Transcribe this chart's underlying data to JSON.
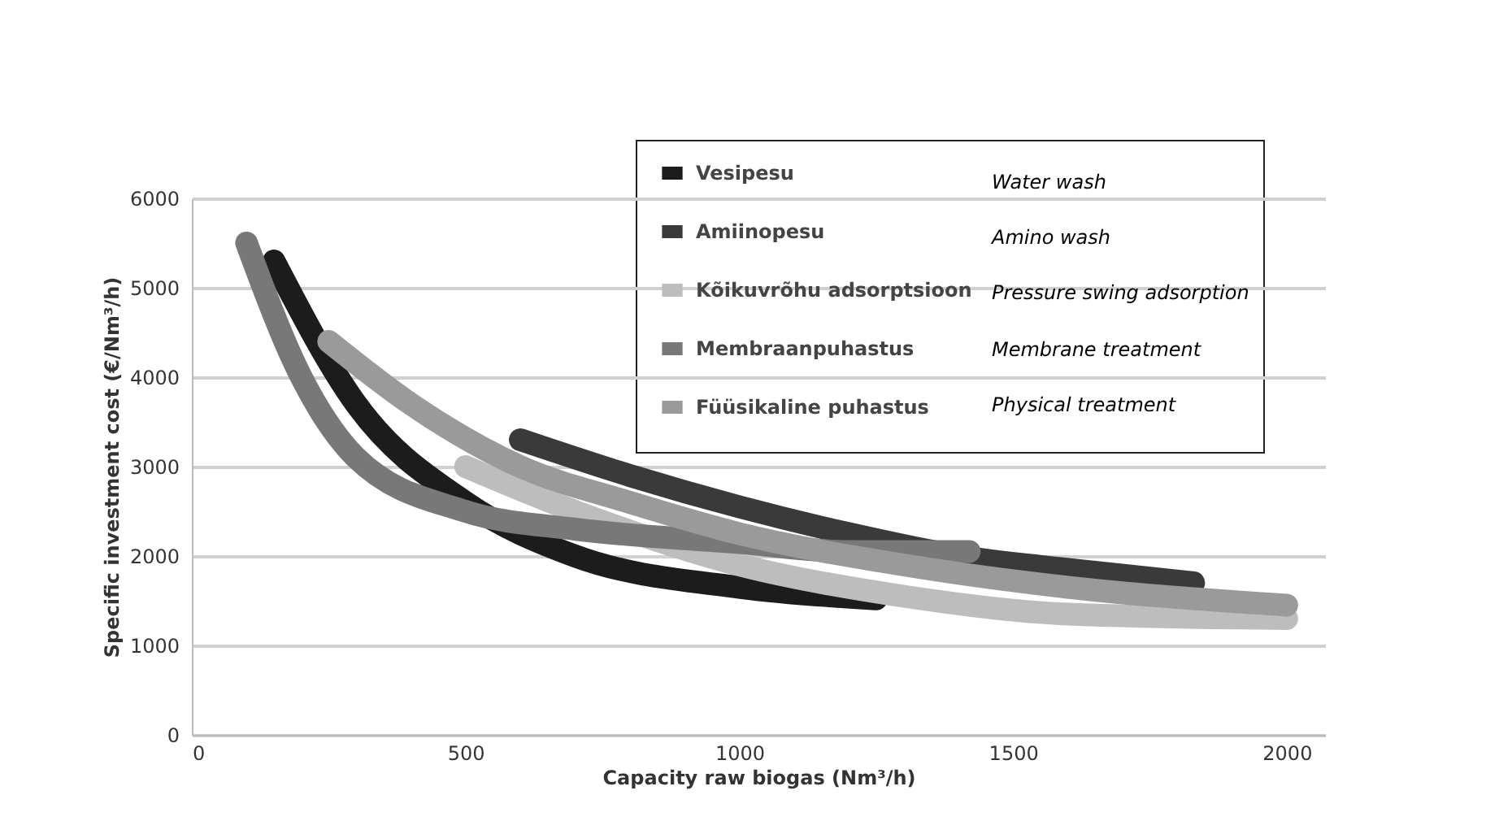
{
  "chart_data": {
    "type": "line",
    "xlabel": "Capacity raw biogas (Nm³/h)",
    "ylabel": "Specific investment cost (€/Nm³/h)",
    "xlim": [
      0,
      2070
    ],
    "xticks": [
      0,
      500,
      1000,
      1500,
      2000
    ],
    "ylim": [
      0,
      6000
    ],
    "yticks": [
      0,
      1000,
      2000,
      3000,
      4000,
      5000,
      6000
    ],
    "grid": "y",
    "legend": "top right",
    "marker": "none",
    "line_style": "solid",
    "annotations": [
      "Water wash",
      "Amino wash",
      "Pressure swing adsorption",
      "Membrane treatment",
      "Physical treatment"
    ],
    "series": [
      {
        "name": "Vesipesu",
        "color": "#1c1c1c",
        "x": [
          150,
          300,
          500,
          700,
          1000,
          1250
        ],
        "values": [
          5300,
          3700,
          2600,
          2000,
          1650,
          1520
        ]
      },
      {
        "name": "Amiinopesu",
        "color": "#3a3a3a",
        "x": [
          600,
          800,
          1000,
          1200,
          1400,
          1600,
          1830
        ],
        "values": [
          3300,
          2900,
          2550,
          2250,
          2000,
          1850,
          1700
        ]
      },
      {
        "name": "Kõikuvrõhu adsorptsioon",
        "color": "#bdbdbd",
        "x": [
          500,
          700,
          1000,
          1300,
          1600,
          2000
        ],
        "values": [
          3000,
          2500,
          1900,
          1550,
          1350,
          1300
        ]
      },
      {
        "name": "Membraanpuhastus",
        "color": "#787878",
        "x": [
          100,
          200,
          300,
          500,
          700,
          1000,
          1200,
          1420
        ],
        "values": [
          5500,
          4000,
          3100,
          2500,
          2300,
          2150,
          2050,
          2050
        ]
      },
      {
        "name": "Füüsikaline puhastus",
        "color": "#9a9a9a",
        "x": [
          250,
          400,
          600,
          800,
          1000,
          1300,
          1600,
          2000
        ],
        "values": [
          4400,
          3700,
          3000,
          2600,
          2250,
          1900,
          1650,
          1450
        ]
      }
    ]
  }
}
